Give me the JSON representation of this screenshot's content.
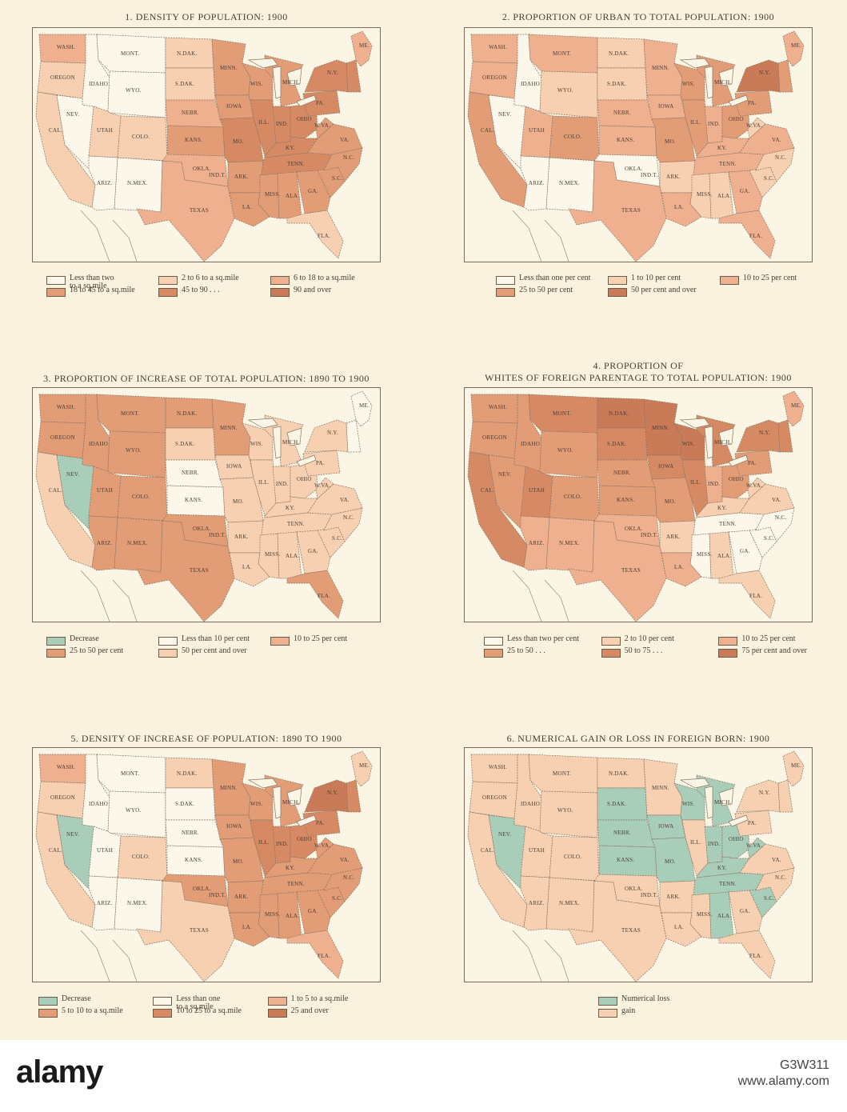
{
  "colors": {
    "c0": "#fbf7ea",
    "c1": "#f6d0b1",
    "c2": "#eeb08e",
    "c3": "#e29c76",
    "c4": "#d58a64",
    "c5": "#c97b58",
    "green": "#a8cdb9"
  },
  "panels": [
    {
      "title": "1. DENSITY OF POPULATION: 1900",
      "legend": [
        {
          "label": "Less than two\nto a sq.mile",
          "color": "c0"
        },
        {
          "label": "2 to 6 to a sq.mile",
          "color": "c1"
        },
        {
          "label": "6 to 18 to a sq.mile",
          "color": "c2"
        },
        {
          "label": "18 to 45 to a sq.mile",
          "color": "c3"
        },
        {
          "label": "45 to 90   .   .   .",
          "color": "c4"
        },
        {
          "label": "90 and over",
          "color": "c5"
        }
      ],
      "states": {
        "WASH": "c2",
        "OREGON": "c1",
        "IDAHO": "c0",
        "MONT": "c0",
        "WYO": "c0",
        "NEV": "c0",
        "CAL": "c1",
        "UTAH": "c1",
        "COLO": "c1",
        "ARIZ": "c0",
        "NMEX": "c0",
        "NDAK": "c1",
        "SDAK": "c1",
        "NEBR": "c2",
        "KANS": "c3",
        "OKLA": "c2",
        "TEXAS": "c2",
        "MINN": "c3",
        "IOWA": "c3",
        "MO": "c4",
        "ARK": "c3",
        "LA": "c3",
        "WIS": "c3",
        "ILL": "c4",
        "MICH": "c3",
        "IND": "c4",
        "OHIO": "c4",
        "KY": "c4",
        "TENN": "c4",
        "MISS": "c3",
        "ALA": "c3",
        "GA": "c3",
        "FLA": "c1",
        "SC": "c3",
        "NC": "c3",
        "VA": "c3",
        "WVA": "c3",
        "PA": "c4",
        "NY": "c4",
        "NE": "c4",
        "ME": "c2"
      }
    },
    {
      "title": "2. PROPORTION OF URBAN TO TOTAL POPULATION: 1900",
      "legend": [
        {
          "label": "Less than one per cent",
          "color": "c0"
        },
        {
          "label": "1 to 10 per cent",
          "color": "c1"
        },
        {
          "label": "10 to 25 per cent",
          "color": "c2"
        },
        {
          "label": "25 to 50 per cent",
          "color": "c3"
        },
        {
          "label": "50 per cent and over",
          "color": "c5"
        }
      ],
      "states": {
        "WASH": "c2",
        "OREGON": "c2",
        "IDAHO": "c0",
        "MONT": "c2",
        "WYO": "c1",
        "NEV": "c0",
        "CAL": "c3",
        "UTAH": "c2",
        "COLO": "c3",
        "ARIZ": "c0",
        "NMEX": "c0",
        "NDAK": "c1",
        "SDAK": "c1",
        "NEBR": "c2",
        "KANS": "c2",
        "OKLA": "c0",
        "TEXAS": "c2",
        "MINN": "c2",
        "IOWA": "c2",
        "MO": "c3",
        "ARK": "c1",
        "LA": "c2",
        "WIS": "c3",
        "ILL": "c3",
        "MICH": "c3",
        "IND": "c2",
        "OHIO": "c3",
        "KY": "c2",
        "TENN": "c2",
        "MISS": "c1",
        "ALA": "c1",
        "GA": "c2",
        "FLA": "c2",
        "SC": "c1",
        "NC": "c1",
        "VA": "c2",
        "WVA": "c1",
        "PA": "c3",
        "NY": "c5",
        "NE": "c3",
        "ME": "c2"
      }
    },
    {
      "title": "3. PROPORTION OF INCREASE OF TOTAL POPULATION: 1890 TO 1900",
      "legend": [
        {
          "label": "Decrease",
          "color": "green"
        },
        {
          "label": "Less than 10 per cent",
          "color": "c0"
        },
        {
          "label": "10 to 25 per cent",
          "color": "c2"
        },
        {
          "label": "25 to 50 per cent",
          "color": "c3"
        },
        {
          "label": "50 per cent and over",
          "color": "c1"
        }
      ],
      "states": {
        "WASH": "c3",
        "OREGON": "c3",
        "IDAHO": "c3",
        "MONT": "c3",
        "WYO": "c3",
        "NEV": "green",
        "CAL": "c1",
        "UTAH": "c3",
        "COLO": "c3",
        "ARIZ": "c3",
        "NMEX": "c3",
        "NDAK": "c3",
        "SDAK": "c1",
        "NEBR": "c0",
        "KANS": "c0",
        "OKLA": "c3",
        "TEXAS": "c3",
        "MINN": "c3",
        "IOWA": "c1",
        "MO": "c1",
        "ARK": "c1",
        "LA": "c1",
        "WIS": "c1",
        "ILL": "c1",
        "MICH": "c1",
        "IND": "c1",
        "OHIO": "c1",
        "KY": "c1",
        "TENN": "c1",
        "MISS": "c1",
        "ALA": "c1",
        "GA": "c1",
        "FLA": "c3",
        "SC": "c1",
        "NC": "c1",
        "VA": "c1",
        "WVA": "c1",
        "PA": "c1",
        "NY": "c1",
        "NE": "c0",
        "ME": "c0"
      }
    },
    {
      "title": "4. PROPORTION OF\nWHITES OF FOREIGN PARENTAGE TO TOTAL POPULATION: 1900",
      "legend": [
        {
          "label": "Less than two per cent",
          "color": "c0"
        },
        {
          "label": "2 to 10 per cent",
          "color": "c1"
        },
        {
          "label": "10 to 25 per cent",
          "color": "c2"
        },
        {
          "label": "25 to 50   .   .   .",
          "color": "c3"
        },
        {
          "label": "50 to 75   .   .   .",
          "color": "c4"
        },
        {
          "label": "75 per cent and over",
          "color": "c5"
        }
      ],
      "states": {
        "WASH": "c3",
        "OREGON": "c3",
        "IDAHO": "c3",
        "MONT": "c4",
        "WYO": "c3",
        "NEV": "c3",
        "CAL": "c4",
        "UTAH": "c4",
        "COLO": "c3",
        "ARIZ": "c2",
        "NMEX": "c2",
        "NDAK": "c5",
        "SDAK": "c4",
        "NEBR": "c3",
        "KANS": "c3",
        "OKLA": "c2",
        "TEXAS": "c2",
        "MINN": "c5",
        "IOWA": "c4",
        "MO": "c3",
        "ARK": "c1",
        "LA": "c2",
        "WIS": "c5",
        "ILL": "c4",
        "MICH": "c4",
        "IND": "c2",
        "OHIO": "c3",
        "KY": "c1",
        "TENN": "c0",
        "MISS": "c0",
        "ALA": "c1",
        "GA": "c0",
        "FLA": "c1",
        "SC": "c0",
        "NC": "c0",
        "VA": "c1",
        "WVA": "c1",
        "PA": "c3",
        "NY": "c4",
        "NE": "c4",
        "ME": "c2"
      }
    },
    {
      "title": "5. DENSITY OF INCREASE OF POPULATION: 1890 TO 1900",
      "legend": [
        {
          "label": "Decrease",
          "color": "green"
        },
        {
          "label": "Less than one\nto a sq.mile",
          "color": "c0"
        },
        {
          "label": "1 to 5 to a sq.mile",
          "color": "c2"
        },
        {
          "label": "5 to 10 to a sq.mile",
          "color": "c3"
        },
        {
          "label": "10 to 25 to a sq.mile",
          "color": "c4"
        },
        {
          "label": "25 and over",
          "color": "c5"
        }
      ],
      "states": {
        "WASH": "c2",
        "OREGON": "c1",
        "IDAHO": "c0",
        "MONT": "c0",
        "WYO": "c0",
        "NEV": "green",
        "CAL": "c1",
        "UTAH": "c0",
        "COLO": "c1",
        "ARIZ": "c0",
        "NMEX": "c0",
        "NDAK": "c1",
        "SDAK": "c0",
        "NEBR": "c0",
        "KANS": "c0",
        "OKLA": "c3",
        "TEXAS": "c1",
        "MINN": "c3",
        "IOWA": "c3",
        "MO": "c3",
        "ARK": "c3",
        "LA": "c3",
        "WIS": "c3",
        "ILL": "c4",
        "MICH": "c3",
        "IND": "c4",
        "OHIO": "c4",
        "KY": "c3",
        "TENN": "c3",
        "MISS": "c3",
        "ALA": "c3",
        "GA": "c3",
        "FLA": "c2",
        "SC": "c3",
        "NC": "c3",
        "VA": "c3",
        "WVA": "c3",
        "PA": "c4",
        "NY": "c5",
        "NE": "c4",
        "ME": "c1"
      }
    },
    {
      "title": "6. NUMERICAL GAIN OR LOSS IN FOREIGN BORN: 1900",
      "legend": [
        {
          "label": "Numerical loss",
          "color": "green"
        },
        {
          "label": "gain",
          "color": "c1"
        }
      ],
      "states": {
        "WASH": "c1",
        "OREGON": "c1",
        "IDAHO": "c1",
        "MONT": "c1",
        "WYO": "c1",
        "NEV": "green",
        "CAL": "c1",
        "UTAH": "c1",
        "COLO": "c1",
        "ARIZ": "c1",
        "NMEX": "c1",
        "NDAK": "c1",
        "SDAK": "green",
        "NEBR": "green",
        "KANS": "green",
        "OKLA": "c1",
        "TEXAS": "c1",
        "MINN": "c1",
        "IOWA": "green",
        "MO": "green",
        "ARK": "c1",
        "LA": "c1",
        "WIS": "green",
        "ILL": "c1",
        "MICH": "green",
        "IND": "green",
        "OHIO": "green",
        "KY": "green",
        "TENN": "green",
        "MISS": "c1",
        "ALA": "green",
        "GA": "c1",
        "FLA": "c1",
        "SC": "green",
        "NC": "c1",
        "VA": "c1",
        "WVA": "green",
        "PA": "c1",
        "NY": "c1",
        "NE": "c1",
        "ME": "c1"
      }
    }
  ],
  "state_labels": {
    "WASH": "WASH.",
    "OREGON": "OREGON",
    "IDAHO": "IDAHO",
    "MONT": "MONT.",
    "WYO": "WYO.",
    "NEV": "NEV.",
    "CAL": "CAL.",
    "UTAH": "UTAH",
    "COLO": "COLO.",
    "ARIZ": "ARIZ.",
    "NMEX": "N.MEX.",
    "NDAK": "N.DAK.",
    "SDAK": "S.DAK.",
    "NEBR": "NEBR.",
    "KANS": "KANS.",
    "OKLA": "OKLA.",
    "INDT": "IND.T.",
    "TEXAS": "TEXAS",
    "MINN": "MINN.",
    "IOWA": "IOWA",
    "MO": "MO.",
    "ARK": "ARK.",
    "LA": "LA.",
    "WIS": "WIS.",
    "ILL": "ILL.",
    "MICH": "MICH.",
    "IND": "IND.",
    "OHIO": "OHIO",
    "KY": "KY.",
    "TENN": "TENN.",
    "MISS": "MISS.",
    "ALA": "ALA.",
    "GA": "GA.",
    "FLA": "FLA.",
    "SC": "S.C.",
    "NC": "N.C.",
    "VA": "VA.",
    "WVA": "W.VA.",
    "PA": "PA.",
    "NY": "N.Y.",
    "ME": "ME."
  },
  "watermark": {
    "logo": "alamy",
    "image_id": "G3W311",
    "site": "www.alamy.com"
  }
}
